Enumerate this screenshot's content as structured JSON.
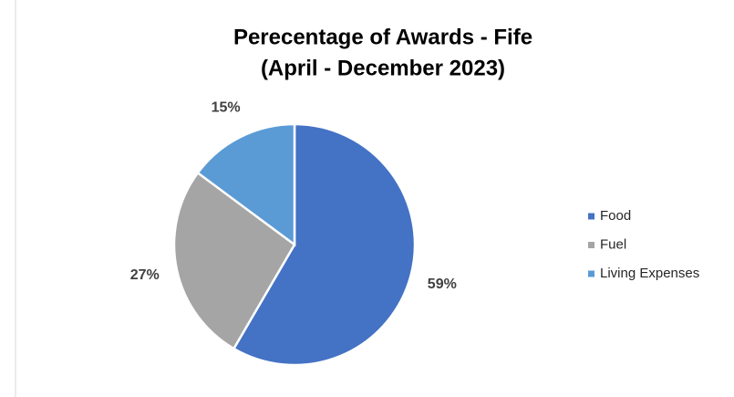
{
  "chart_data": {
    "type": "pie",
    "title": "Perecentage of Awards - Fife",
    "subtitle": "(April - December 2023)",
    "categories": [
      "Food",
      "Fuel",
      "Living Expenses"
    ],
    "values": [
      59,
      27,
      15
    ],
    "value_labels": [
      "59%",
      "27%",
      "15%"
    ],
    "colors": [
      "#4472c4",
      "#a5a5a5",
      "#5b9bd5"
    ],
    "legend": "right"
  }
}
